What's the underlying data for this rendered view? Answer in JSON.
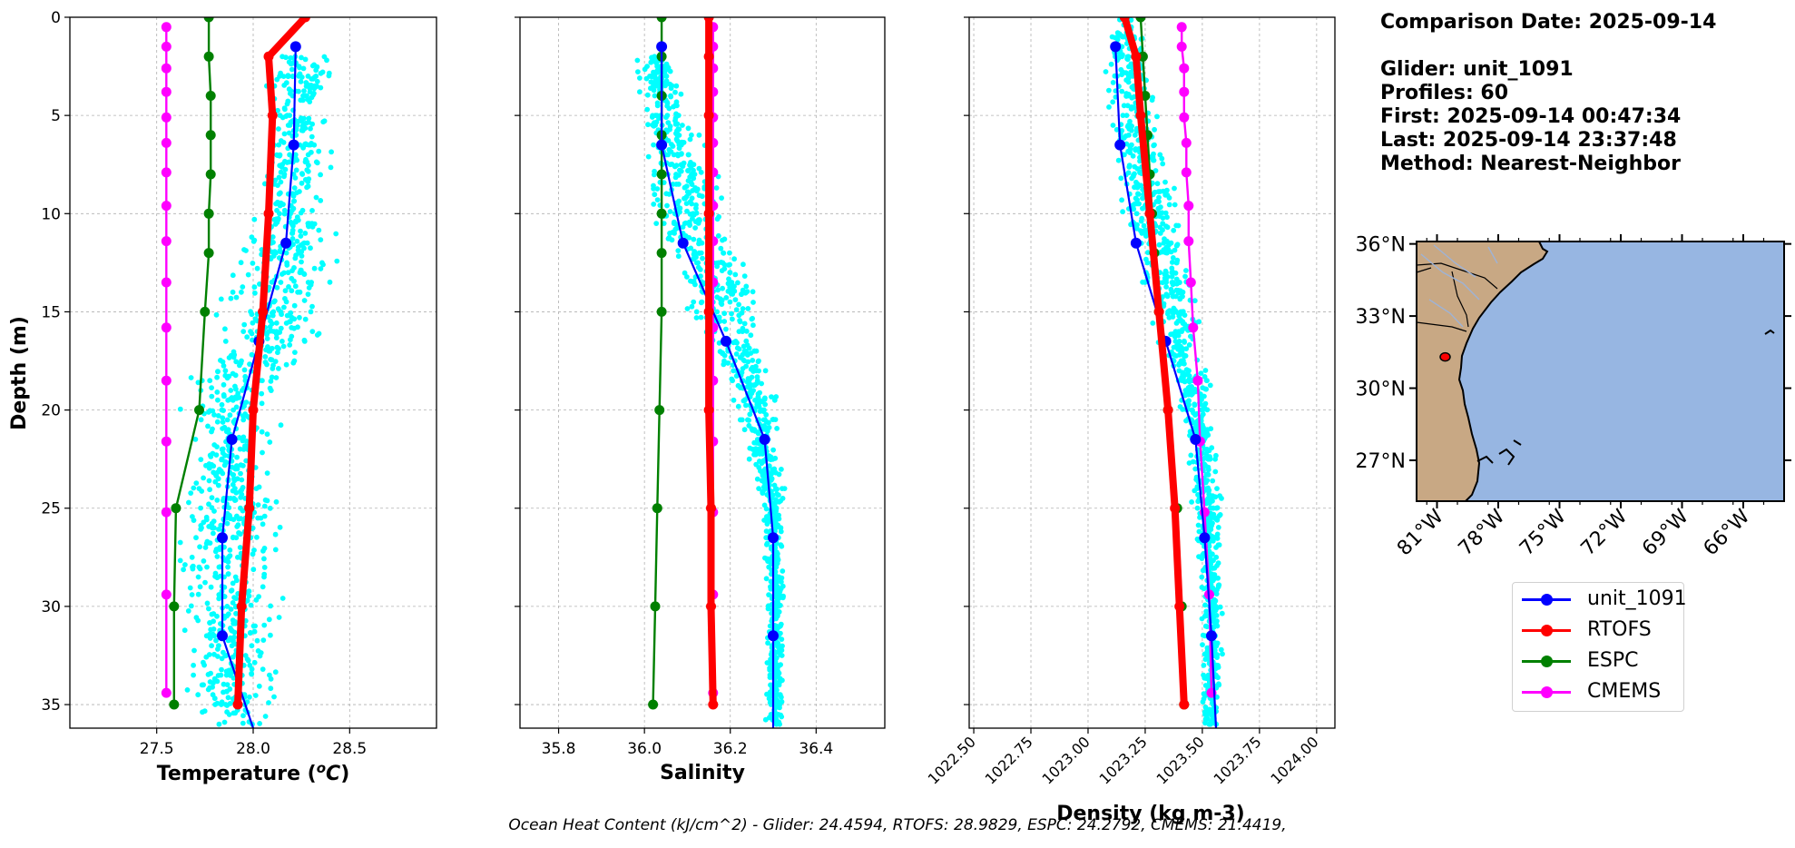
{
  "info": {
    "comparison_date": "Comparison Date: 2025-09-14",
    "glider": "Glider: unit_1091",
    "profiles": "Profiles: 60",
    "first": "First: 2025-09-14 00:47:34",
    "last": "Last: 2025-09-14 23:37:48",
    "method": "Method: Nearest-Neighbor"
  },
  "footer": {
    "text": "Ocean Heat Content (kJ/cm^2) - Glider: 24.4594,  RTOFS: 28.9829,  ESPC: 24.2792,  CMEMS: 21.4419,"
  },
  "colors": {
    "glider": "#0000ff",
    "rtofs": "#ff0000",
    "espc": "#008000",
    "cmems": "#ff00ff",
    "scatter": "#00ffff",
    "land": "#c8a884",
    "ocean": "#97b6e2"
  },
  "legend": [
    "unit_1091",
    "RTOFS",
    "ESPC",
    "CMEMS"
  ],
  "chart_data": [
    {
      "type": "line",
      "xlabel": "Temperature (°C)",
      "ylabel": "Depth (m)",
      "xlim": [
        27.05,
        28.95
      ],
      "ylim": [
        36.2,
        0
      ],
      "xticks": [
        "27.5",
        "28.0",
        "28.5"
      ],
      "xtick_values": [
        27.5,
        28.0,
        28.5
      ],
      "yticks": [
        "0",
        "5",
        "10",
        "15",
        "20",
        "25",
        "30",
        "35"
      ],
      "grid": true,
      "series": [
        {
          "name": "unit_1091",
          "depth": [
            1.5,
            6.5,
            11.5,
            16.5,
            21.5,
            26.5,
            31.5,
            36.2
          ],
          "values": [
            28.22,
            28.21,
            28.17,
            28.03,
            27.89,
            27.84,
            27.84,
            28.0
          ]
        },
        {
          "name": "RTOFS",
          "depth": [
            0.0,
            2.0,
            5.0,
            10.0,
            15.0,
            20.0,
            25.0,
            30.0,
            35.0
          ],
          "values": [
            28.27,
            28.08,
            28.1,
            28.08,
            28.05,
            28.0,
            27.98,
            27.94,
            27.92
          ]
        },
        {
          "name": "ESPC",
          "depth": [
            0.0,
            2.0,
            4.0,
            6.0,
            8.0,
            10.0,
            12.0,
            15.0,
            20.0,
            25.0,
            30.0,
            35.0
          ],
          "values": [
            27.77,
            27.77,
            27.78,
            27.78,
            27.78,
            27.77,
            27.77,
            27.75,
            27.72,
            27.6,
            27.59,
            27.59
          ]
        },
        {
          "name": "CMEMS",
          "depth": [
            0.5,
            1.5,
            2.6,
            3.8,
            5.1,
            6.4,
            7.9,
            9.6,
            11.4,
            13.5,
            15.8,
            18.5,
            21.6,
            25.2,
            29.4,
            34.4
          ],
          "values": [
            27.55,
            27.55,
            27.55,
            27.55,
            27.55,
            27.55,
            27.55,
            27.55,
            27.55,
            27.55,
            27.55,
            27.55,
            27.55,
            27.55,
            27.55,
            27.55
          ]
        }
      ],
      "scatter_envelope": {
        "depth": [
          2,
          10,
          15,
          20,
          25,
          30,
          36
        ],
        "lo": [
          28.05,
          27.95,
          27.75,
          27.58,
          27.58,
          27.58,
          27.58
        ],
        "hi": [
          28.46,
          28.45,
          28.48,
          28.2,
          28.18,
          28.18,
          28.18
        ]
      }
    },
    {
      "type": "line",
      "xlabel": "Salinity",
      "xlim": [
        35.71,
        36.56
      ],
      "ylim": [
        36.2,
        0
      ],
      "xticks": [
        "35.8",
        "36.0",
        "36.2",
        "36.4"
      ],
      "xtick_values": [
        35.8,
        36.0,
        36.2,
        36.4
      ],
      "grid": true,
      "series": [
        {
          "name": "unit_1091",
          "depth": [
            1.5,
            6.5,
            11.5,
            16.5,
            21.5,
            26.5,
            31.5,
            36.2
          ],
          "values": [
            36.04,
            36.04,
            36.09,
            36.19,
            36.28,
            36.3,
            36.3,
            36.3
          ]
        },
        {
          "name": "RTOFS",
          "depth": [
            0.0,
            2.0,
            5.0,
            10.0,
            15.0,
            20.0,
            25.0,
            30.0,
            35.0
          ],
          "values": [
            36.15,
            36.15,
            36.15,
            36.15,
            36.15,
            36.15,
            36.155,
            36.155,
            36.16
          ]
        },
        {
          "name": "ESPC",
          "depth": [
            0.0,
            2.0,
            4.0,
            6.0,
            8.0,
            10.0,
            12.0,
            15.0,
            20.0,
            25.0,
            30.0,
            35.0
          ],
          "values": [
            36.04,
            36.04,
            36.04,
            36.04,
            36.04,
            36.04,
            36.04,
            36.04,
            36.035,
            36.03,
            36.025,
            36.02
          ]
        },
        {
          "name": "CMEMS",
          "depth": [
            0.5,
            1.5,
            2.6,
            3.8,
            5.1,
            6.4,
            7.9,
            9.6,
            11.4,
            13.5,
            15.8,
            18.5,
            21.6,
            25.2,
            29.4,
            34.4
          ],
          "values": [
            36.16,
            36.16,
            36.16,
            36.16,
            36.16,
            36.16,
            36.16,
            36.16,
            36.16,
            36.16,
            36.16,
            36.16,
            36.16,
            36.16,
            36.16,
            36.16
          ]
        }
      ],
      "scatter_envelope": {
        "depth": [
          2,
          10,
          15,
          20,
          25,
          30,
          36
        ],
        "lo": [
          35.97,
          35.99,
          36.08,
          36.2,
          36.27,
          36.28,
          36.28
        ],
        "hi": [
          36.07,
          36.22,
          36.31,
          36.33,
          36.33,
          36.33,
          36.33
        ]
      }
    },
    {
      "type": "line",
      "xlabel": "Density (kg m-3)",
      "xlim": [
        1022.48,
        1024.08
      ],
      "ylim": [
        36.2,
        0
      ],
      "xticks": [
        "1022.50",
        "1022.75",
        "1023.00",
        "1023.25",
        "1023.50",
        "1023.75",
        "1024.00"
      ],
      "xtick_values": [
        1022.5,
        1022.75,
        1023.0,
        1023.25,
        1023.5,
        1023.75,
        1024.0
      ],
      "grid": true,
      "series": [
        {
          "name": "unit_1091",
          "depth": [
            1.5,
            6.5,
            11.5,
            16.5,
            21.5,
            26.5,
            31.5,
            36.2
          ],
          "values": [
            1023.12,
            1023.14,
            1023.21,
            1023.34,
            1023.47,
            1023.51,
            1023.54,
            1023.56
          ]
        },
        {
          "name": "RTOFS",
          "depth": [
            0.0,
            2.0,
            5.0,
            10.0,
            15.0,
            20.0,
            25.0,
            30.0,
            35.0
          ],
          "values": [
            1023.16,
            1023.21,
            1023.23,
            1023.27,
            1023.31,
            1023.35,
            1023.38,
            1023.4,
            1023.42
          ]
        },
        {
          "name": "ESPC",
          "depth": [
            0.0,
            2.0,
            4.0,
            6.0,
            8.0,
            10.0,
            12.0,
            15.0,
            20.0,
            25.0,
            30.0,
            35.0
          ],
          "values": [
            1023.23,
            1023.24,
            1023.25,
            1023.26,
            1023.27,
            1023.28,
            1023.29,
            1023.31,
            1023.35,
            1023.39,
            1023.41,
            1023.42
          ]
        },
        {
          "name": "CMEMS",
          "depth": [
            0.5,
            1.5,
            2.6,
            3.8,
            5.1,
            6.4,
            7.9,
            9.6,
            11.4,
            13.5,
            15.8,
            18.5,
            21.6,
            25.2,
            29.4,
            34.4
          ],
          "values": [
            1023.41,
            1023.41,
            1023.42,
            1023.42,
            1023.42,
            1023.43,
            1023.43,
            1023.44,
            1023.44,
            1023.45,
            1023.46,
            1023.48,
            1023.49,
            1023.51,
            1023.53,
            1023.54
          ]
        }
      ],
      "scatter_envelope": {
        "depth": [
          0,
          2,
          10,
          15,
          20,
          25,
          30,
          36
        ],
        "lo": [
          1023.1,
          1023.05,
          1023.12,
          1023.25,
          1023.38,
          1023.45,
          1023.48,
          1023.48
        ],
        "hi": [
          1023.25,
          1023.28,
          1023.42,
          1023.5,
          1023.58,
          1023.6,
          1023.6,
          1023.6
        ]
      }
    },
    {
      "type": "map",
      "lat_ticks": [
        "36°N",
        "33°N",
        "30°N",
        "27°N"
      ],
      "lat_values": [
        36,
        33,
        30,
        27
      ],
      "lon_ticks": [
        "81°W",
        "78°W",
        "75°W",
        "72°W",
        "69°W",
        "66°W"
      ],
      "lon_values": [
        -81,
        -78,
        -75,
        -72,
        -69,
        -66
      ],
      "lat_range": [
        25.3,
        36.1
      ],
      "lon_range": [
        -82.0,
        -64.0
      ],
      "glider_position": {
        "lat": 31.3,
        "lon": -80.6
      }
    }
  ]
}
